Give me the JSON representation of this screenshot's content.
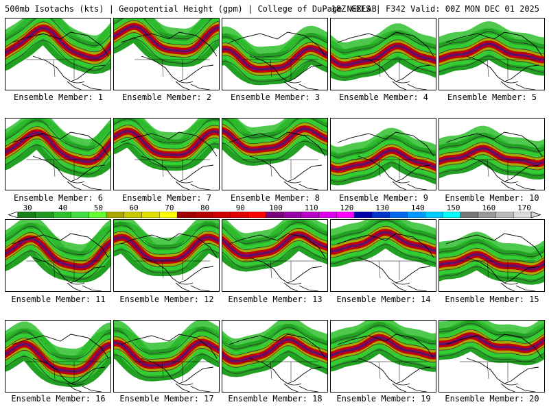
{
  "header": {
    "left_title": "500mb Isotachs (kts) | Geopotential Height (gpm) | College of DuPage NEXLAB",
    "right_title": "18Z GEFS | F342 Valid: 00Z MON DEC 01 2025"
  },
  "members": [
    "Ensemble Member: 1",
    "Ensemble Member: 2",
    "Ensemble Member: 3",
    "Ensemble Member: 4",
    "Ensemble Member: 5",
    "Ensemble Member: 6",
    "Ensemble Member: 7",
    "Ensemble Member: 8",
    "Ensemble Member: 9",
    "Ensemble Member: 10",
    "Ensemble Member: 11",
    "Ensemble Member: 12",
    "Ensemble Member: 13",
    "Ensemble Member: 14",
    "Ensemble Member: 15",
    "Ensemble Member: 16",
    "Ensemble Member: 17",
    "Ensemble Member: 18",
    "Ensemble Member: 19",
    "Ensemble Member: 20"
  ],
  "colorbar": {
    "ticks": [
      "30",
      "40",
      "50",
      "60",
      "70",
      "80",
      "90",
      "100",
      "110",
      "120",
      "130",
      "140",
      "150",
      "160",
      "170"
    ],
    "colors": [
      "#1a7f1a",
      "#229922",
      "#2fbf2f",
      "#44dd44",
      "#66ff33",
      "#a8a800",
      "#c8c800",
      "#e0e000",
      "#ffff00",
      "#a00000",
      "#b80000",
      "#d00000",
      "#e00000",
      "#ff0000",
      "#7a007a",
      "#9900aa",
      "#bb00cc",
      "#dd00ee",
      "#ff00ff",
      "#0000aa",
      "#0033cc",
      "#0066ee",
      "#0099ff",
      "#00ccff",
      "#00ffff",
      "#777777",
      "#999999",
      "#bbbbbb",
      "#dddddd"
    ]
  }
}
